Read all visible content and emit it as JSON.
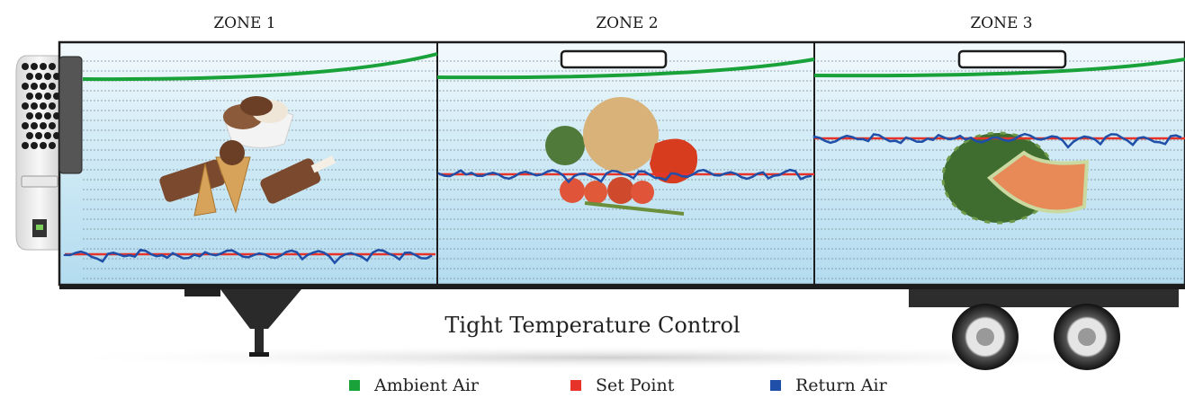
{
  "zones": [
    {
      "label": "ZONE 1"
    },
    {
      "label": "ZONE 2"
    },
    {
      "label": "ZONE 3"
    }
  ],
  "caption": "Tight Temperature Control",
  "legend": [
    {
      "label": "Ambient Air",
      "color": "#1aa23a"
    },
    {
      "label": "Set Point",
      "color": "#e8332a"
    },
    {
      "label": "Return Air",
      "color": "#1f4fa8"
    }
  ],
  "colors": {
    "ambient": "#1aa23a",
    "setpoint": "#e8332a",
    "return": "#1f4fa8",
    "panel_top": "#ffffff",
    "panel_bottom": "#b3dcef"
  },
  "zone_contents": [
    "ice-cream-icon",
    "vegetables-icon",
    "melon-icon"
  ]
}
